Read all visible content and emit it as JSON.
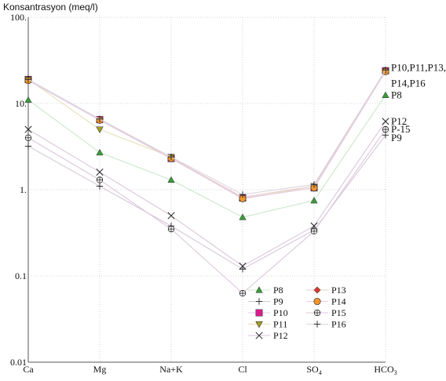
{
  "chart_data": {
    "type": "line",
    "title": "",
    "ylabel": "Konsantrasyon (meq/l)",
    "xlabel": "",
    "y_scale": "log",
    "ylim": [
      0.01,
      100
    ],
    "y_ticks": [
      {
        "value": 0.01,
        "label": "0.01"
      },
      {
        "value": 0.1,
        "label": "0.1"
      },
      {
        "value": 1,
        "label": "1."
      },
      {
        "value": 10,
        "label": "10."
      },
      {
        "value": 100,
        "label": "100."
      }
    ],
    "categories": [
      {
        "label": "Ca",
        "sub": ""
      },
      {
        "label": "Mg",
        "sub": ""
      },
      {
        "label": "Na+K",
        "sub": ""
      },
      {
        "label": "Cl",
        "sub": ""
      },
      {
        "label": "SO",
        "sub": "4"
      },
      {
        "label": "HCO",
        "sub": "3"
      }
    ],
    "grid": true,
    "legend_position": "bottom-right",
    "series": [
      {
        "name": "P8",
        "marker": "triangle",
        "color": "#3a9a3a",
        "line_color": "#c9e8c9",
        "values": [
          11,
          2.7,
          1.3,
          0.48,
          0.75,
          12.5
        ]
      },
      {
        "name": "P9",
        "marker": "plus",
        "color": "#222222",
        "line_color": "#d6c6d6",
        "values": [
          3.2,
          1.1,
          0.38,
          0.12,
          0.34,
          4.3
        ]
      },
      {
        "name": "P10",
        "marker": "square",
        "color": "#d81b8c",
        "line_color": "#e6cde6",
        "values": [
          19,
          6.5,
          2.3,
          0.8,
          1.05,
          24
        ]
      },
      {
        "name": "P11",
        "marker": "triangle-down",
        "color": "#a8a020",
        "line_color": "#e6e2b8",
        "values": [
          19,
          5,
          2.4,
          0.78,
          1.1,
          23.5
        ]
      },
      {
        "name": "P12",
        "marker": "x",
        "color": "#222222",
        "line_color": "#dcc6dc",
        "values": [
          5,
          1.6,
          0.5,
          0.13,
          0.38,
          6.2
        ]
      },
      {
        "name": "P13",
        "marker": "diamond",
        "color": "#d6392b",
        "line_color": "#e6cdcd",
        "values": [
          19,
          6.5,
          2.35,
          0.82,
          1.1,
          24
        ]
      },
      {
        "name": "P14",
        "marker": "circle",
        "color": "#f0962a",
        "line_color": "#e6cde6",
        "values": [
          18.5,
          6.4,
          2.3,
          0.79,
          1.05,
          23.5
        ]
      },
      {
        "name": "P15",
        "marker": "circle-plus",
        "color": "#222222",
        "line_color": "#dcc6dc",
        "values": [
          4,
          1.3,
          0.35,
          0.063,
          0.33,
          5
        ]
      },
      {
        "name": "P16",
        "marker": "plus",
        "color": "#222222",
        "line_color": "#dcd6dc",
        "values": [
          19,
          6.6,
          2.4,
          0.88,
          1.15,
          24.5
        ]
      }
    ],
    "end_labels": [
      {
        "text": "P10,P11,P13,",
        "at_value": 26
      },
      {
        "text": "P14,P16",
        "at_value": 17
      },
      {
        "text": "P8",
        "at_value": 12.5
      },
      {
        "text": "P12",
        "at_value": 6.2
      },
      {
        "text": "P-15",
        "at_value": 5
      },
      {
        "text": "P9",
        "at_value": 4.0
      }
    ],
    "legend": {
      "columns": [
        [
          "P8",
          "P9",
          "P10",
          "P11",
          "P12"
        ],
        [
          "P13",
          "P14",
          "P15",
          "P16"
        ]
      ]
    }
  }
}
